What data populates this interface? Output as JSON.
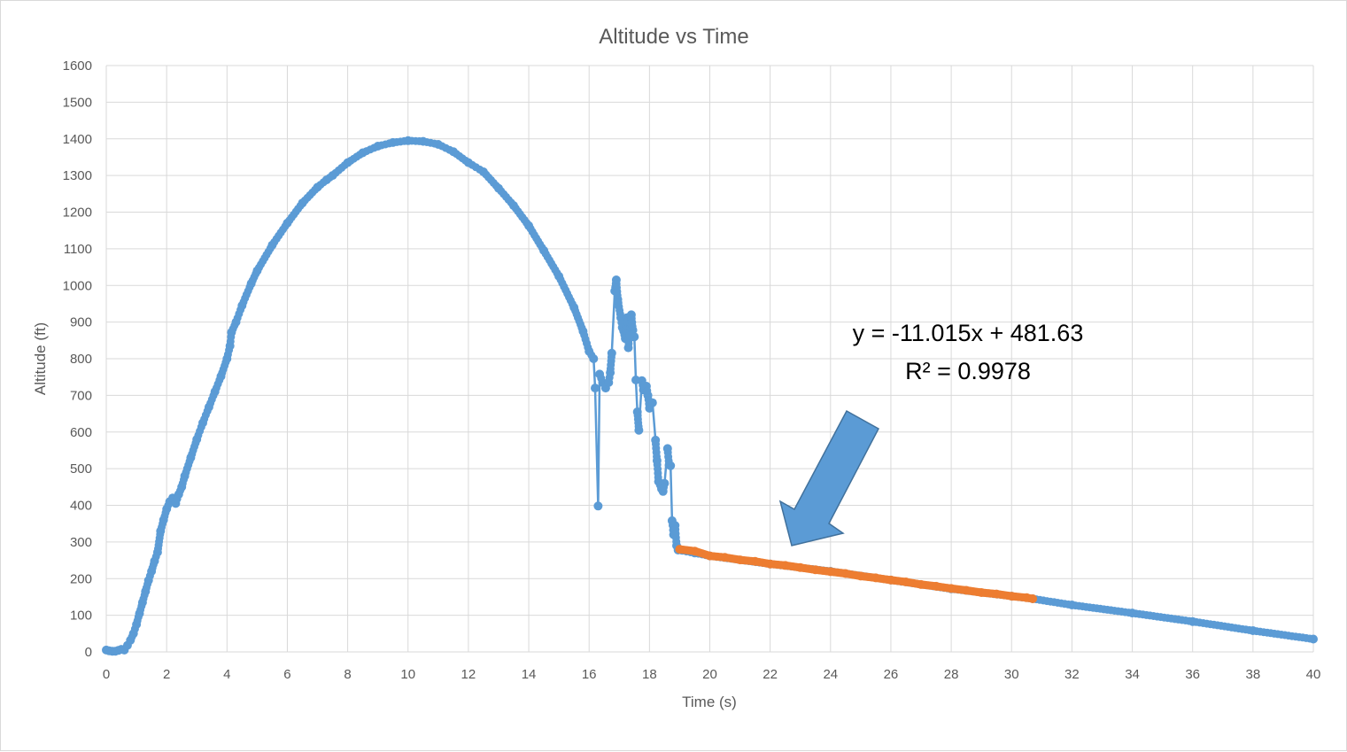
{
  "chart_data": {
    "type": "scatter",
    "title": "Altitude vs Time",
    "xlabel": "Time (s)",
    "ylabel": "Altitude (ft)",
    "xlim": [
      0,
      40
    ],
    "ylim": [
      0,
      1600
    ],
    "xticks": [
      "0",
      "2",
      "4",
      "6",
      "8",
      "10",
      "12",
      "14",
      "16",
      "18",
      "20",
      "22",
      "24",
      "26",
      "28",
      "30",
      "32",
      "34",
      "36",
      "38",
      "40"
    ],
    "yticks": [
      "0",
      "100",
      "200",
      "300",
      "400",
      "500",
      "600",
      "700",
      "800",
      "900",
      "1000",
      "1100",
      "1200",
      "1300",
      "1400",
      "1500",
      "1600"
    ],
    "grid": true,
    "colors": {
      "altitude": "#5b9bd5",
      "fit_segment": "#ed7d31",
      "arrow": "#5b9bd5",
      "arrow_outline": "#41719c"
    },
    "series": [
      {
        "points": [
          [
            0,
            5
          ],
          [
            0.1,
            3
          ],
          [
            0.2,
            2
          ],
          [
            0.3,
            2
          ],
          [
            0.4,
            4
          ],
          [
            0.5,
            7
          ],
          [
            0.6,
            5
          ],
          [
            0.7,
            18
          ],
          [
            0.8,
            32
          ],
          [
            0.9,
            50
          ],
          [
            1.0,
            75
          ],
          [
            1.1,
            105
          ],
          [
            1.2,
            135
          ],
          [
            1.3,
            165
          ],
          [
            1.4,
            195
          ],
          [
            1.5,
            220
          ],
          [
            1.6,
            248
          ],
          [
            1.7,
            272
          ],
          [
            1.8,
            330
          ],
          [
            1.9,
            360
          ],
          [
            2.0,
            390
          ],
          [
            2.1,
            410
          ],
          [
            2.2,
            420
          ],
          [
            2.3,
            405
          ],
          [
            2.4,
            430
          ],
          [
            2.5,
            450
          ],
          [
            2.6,
            480
          ],
          [
            2.8,
            530
          ],
          [
            3.0,
            580
          ],
          [
            3.2,
            625
          ],
          [
            3.4,
            668
          ],
          [
            3.6,
            710
          ],
          [
            3.8,
            752
          ],
          [
            4.0,
            800
          ],
          [
            4.1,
            835
          ],
          [
            4.15,
            872
          ],
          [
            4.3,
            900
          ],
          [
            4.5,
            945
          ],
          [
            4.8,
            1005
          ],
          [
            5.0,
            1040
          ],
          [
            5.5,
            1110
          ],
          [
            6.0,
            1170
          ],
          [
            6.5,
            1225
          ],
          [
            7.0,
            1268
          ],
          [
            7.3,
            1288
          ],
          [
            7.5,
            1300
          ],
          [
            8.0,
            1335
          ],
          [
            8.5,
            1362
          ],
          [
            9.0,
            1380
          ],
          [
            9.5,
            1390
          ],
          [
            10.0,
            1395
          ],
          [
            10.5,
            1393
          ],
          [
            11.0,
            1385
          ],
          [
            11.5,
            1365
          ],
          [
            12.0,
            1335
          ],
          [
            12.5,
            1310
          ],
          [
            13.0,
            1265
          ],
          [
            13.5,
            1218
          ],
          [
            14.0,
            1163
          ],
          [
            14.5,
            1095
          ],
          [
            15.0,
            1025
          ],
          [
            15.5,
            940
          ],
          [
            15.8,
            875
          ],
          [
            16.0,
            820
          ],
          [
            16.15,
            800
          ],
          [
            16.2,
            720
          ],
          [
            16.3,
            398
          ],
          [
            16.35,
            758
          ],
          [
            16.45,
            735
          ],
          [
            16.55,
            720
          ],
          [
            16.65,
            735
          ],
          [
            16.7,
            762
          ],
          [
            16.75,
            815
          ],
          [
            16.85,
            985
          ],
          [
            16.9,
            1015
          ],
          [
            16.95,
            962
          ],
          [
            17.05,
            912
          ],
          [
            17.1,
            885
          ],
          [
            17.2,
            855
          ],
          [
            17.25,
            912
          ],
          [
            17.3,
            830
          ],
          [
            17.35,
            875
          ],
          [
            17.4,
            920
          ],
          [
            17.45,
            878
          ],
          [
            17.5,
            860
          ],
          [
            17.55,
            742
          ],
          [
            17.6,
            655
          ],
          [
            17.65,
            605
          ],
          [
            17.75,
            740
          ],
          [
            17.8,
            715
          ],
          [
            17.9,
            725
          ],
          [
            17.95,
            700
          ],
          [
            18.0,
            665
          ],
          [
            18.1,
            680
          ],
          [
            18.2,
            578
          ],
          [
            18.25,
            522
          ],
          [
            18.3,
            465
          ],
          [
            18.4,
            445
          ],
          [
            18.45,
            438
          ],
          [
            18.5,
            460
          ],
          [
            18.6,
            555
          ],
          [
            18.65,
            510
          ],
          [
            18.7,
            508
          ],
          [
            18.75,
            358
          ],
          [
            18.8,
            320
          ],
          [
            18.85,
            345
          ],
          [
            18.9,
            290
          ],
          [
            18.95,
            278
          ],
          [
            19.5,
            270
          ],
          [
            20,
            262
          ],
          [
            22,
            240
          ],
          [
            24,
            220
          ],
          [
            26,
            196
          ],
          [
            28,
            172
          ],
          [
            30,
            152
          ],
          [
            30.7,
            145
          ],
          [
            32,
            128
          ],
          [
            34,
            106
          ],
          [
            36,
            83
          ],
          [
            38,
            58
          ],
          [
            40,
            35
          ]
        ]
      },
      {
        "points": [
          [
            19.0,
            280
          ],
          [
            19.5,
            275
          ],
          [
            20.0,
            262
          ],
          [
            20.5,
            258
          ],
          [
            21.0,
            251
          ],
          [
            21.5,
            247
          ],
          [
            22.0,
            240
          ],
          [
            22.5,
            236
          ],
          [
            23.0,
            230
          ],
          [
            23.5,
            224
          ],
          [
            24.0,
            219
          ],
          [
            24.5,
            214
          ],
          [
            25.0,
            207
          ],
          [
            25.5,
            202
          ],
          [
            26.0,
            196
          ],
          [
            26.5,
            191
          ],
          [
            27.0,
            184
          ],
          [
            27.5,
            179
          ],
          [
            28.0,
            173
          ],
          [
            28.5,
            168
          ],
          [
            29.0,
            162
          ],
          [
            29.5,
            158
          ],
          [
            30.0,
            152
          ],
          [
            30.5,
            148
          ],
          [
            30.7,
            145
          ]
        ]
      }
    ],
    "annotations": {
      "equation": "y = -11.015x + 481.63",
      "r_squared": "R² = 0.9978"
    }
  }
}
